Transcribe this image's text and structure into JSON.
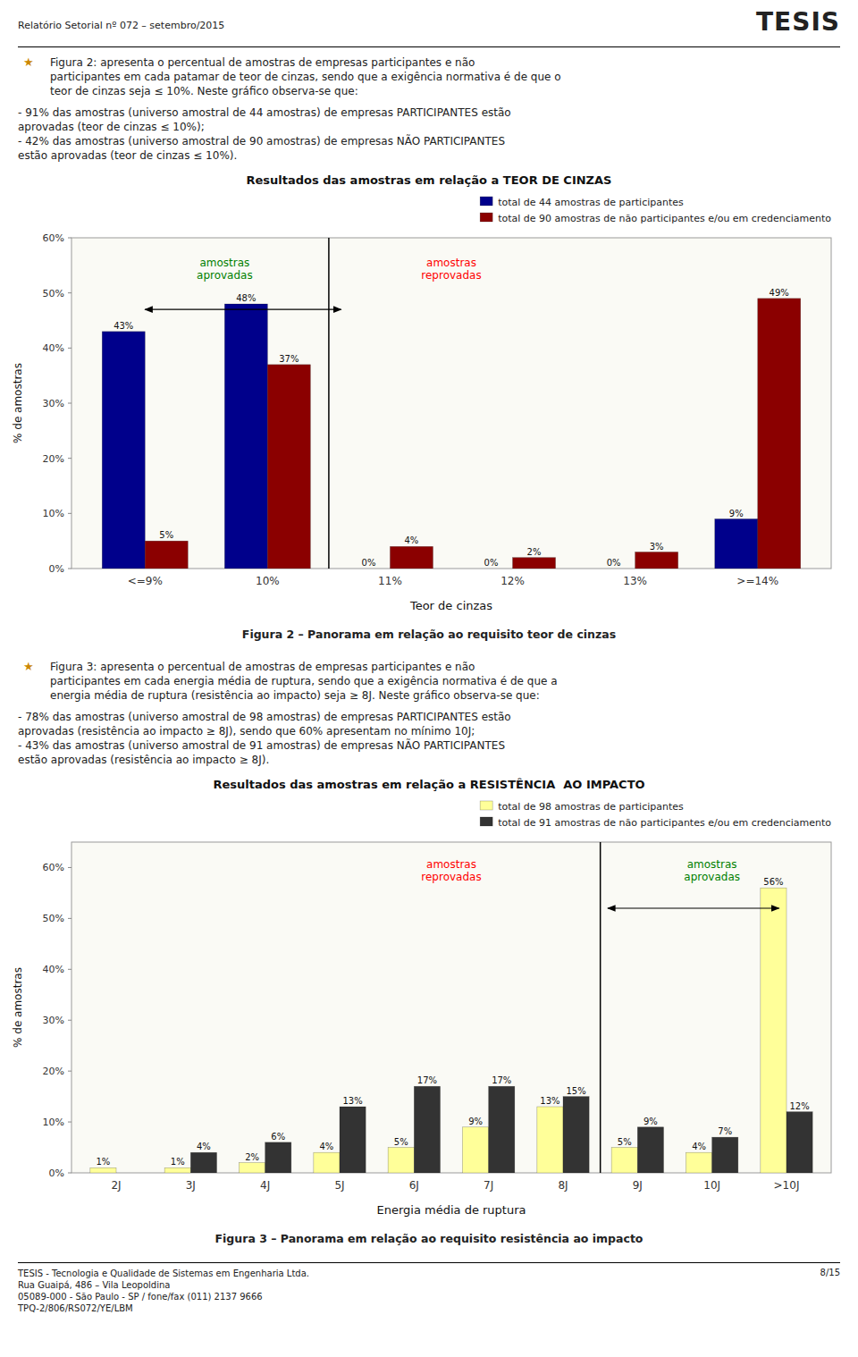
{
  "page_texts": {
    "header": "Relatório Setorial nº 072 – setembro/2015",
    "logo": "TESIS",
    "icon": "★",
    "icon_color": "#CC8800",
    "sections": [
      {
        "intro": "Figura 2: apresenta o percentual de amostras de empresas participantes e não\nparticipantes em cada patamar de teor de cinzas, sendo que a exigência normativa é de que o\nteor de cinzas seja ≤ 10%. Neste gráfico observa-se que:",
        "bullets": [
          "- 91% das amostras (universo amostral de 44 amostras) de empresas PARTICIPANTES estão\naprovadas (teor de cinzas ≤ 10%);",
          "- 42% das amostras (universo amostral de 90 amostras) de empresas NÃO PARTICIPANTES\nestão aprovadas (teor de cinzas ≤ 10%)."
        ],
        "caption": "Figura 2 – Panorama em relação ao requisito teor de cinzas"
      },
      {
        "intro": "Figura 3: apresenta o percentual de amostras de empresas participantes e não\nparticipantes em cada energia média de ruptura, sendo que a exigência normativa é de que a\nenergia média de ruptura (resistência ao impacto) seja ≥ 8J. Neste gráfico observa-se que:",
        "bullets": [
          "- 78% das amostras (universo amostral de 98 amostras) de empresas PARTICIPANTES estão\naprovadas (resistência ao impacto ≥ 8J), sendo que 60% apresentam no mínimo 10J;",
          "- 43% das amostras (universo amostral de 91 amostras) de empresas NÃO PARTICIPANTES\nestão aprovadas (resistência ao impacto ≥ 8J)."
        ],
        "caption": "Figura 3 – Panorama em relação ao requisito resistência ao impacto"
      }
    ],
    "footer_left": "TESIS - Tecnologia e Qualidade de Sistemas em Engenharia Ltda.\nRua Guaipá, 486 – Vila Leopoldina\n05089-000 - São Paulo - SP / fone/fax (011) 2137 9666\nTPQ-2/806/RS072/YE/LBM",
    "footer_right": "8/15"
  },
  "chart_data": [
    {
      "type": "bar",
      "title": "Resultados das amostras em relação a TEOR DE CINZAS",
      "xlabel": "Teor de cinzas",
      "ylabel": "% de amostras",
      "categories": [
        "<=9%",
        "10%",
        "11%",
        "12%",
        "13%",
        ">=14%"
      ],
      "series": [
        {
          "name": "total de 44 amostras de participantes",
          "color": "#00008B",
          "values": [
            43,
            48,
            0,
            0,
            0,
            9
          ],
          "value_labels": [
            "43%",
            "48%",
            "0%",
            "0%",
            "0%",
            "9%"
          ]
        },
        {
          "name": "total de 90 amostras de não participantes e/ou em credenciamento",
          "color": "#8B0000",
          "values": [
            5,
            37,
            4,
            2,
            3,
            49
          ],
          "value_labels": [
            "5%",
            "37%",
            "4%",
            "2%",
            "3%",
            "49%"
          ]
        }
      ],
      "ylim": [
        0,
        60
      ],
      "yticks": [
        {
          "value": 0,
          "label": "0%"
        },
        {
          "value": 10,
          "label": "10%"
        },
        {
          "value": 20,
          "label": "20%"
        },
        {
          "value": 30,
          "label": "30%"
        },
        {
          "value": 40,
          "label": "40%"
        },
        {
          "value": 50,
          "label": "50%"
        },
        {
          "value": 60,
          "label": "60%"
        }
      ],
      "grid": false,
      "legend": "upper right",
      "data_labels": true,
      "annotations": [
        {
          "text": "amostras\naprovadas",
          "color": "green",
          "x": 0.65,
          "y": 52
        },
        {
          "text": "amostras\nreprovadas",
          "color": "red",
          "x": 2.5,
          "y": 52
        }
      ],
      "arrows": [
        {
          "x": [
            0.0,
            1.6
          ],
          "y": 47
        }
      ],
      "dividers": [
        1.5
      ]
    },
    {
      "type": "bar",
      "title": "Resultados das amostras em relação a RESISTÊNCIA  AO IMPACTO",
      "xlabel": "Energia média de ruptura",
      "ylabel": "% de amostras",
      "categories": [
        "2J",
        "3J",
        "4J",
        "5J",
        "6J",
        "7J",
        "8J",
        "9J",
        "10J",
        ">10J"
      ],
      "series": [
        {
          "name": "total de 98 amostras de participantes",
          "color": "#FFFF99",
          "values": [
            1,
            1,
            2,
            4,
            5,
            9,
            13,
            5,
            4,
            56
          ],
          "value_labels": [
            "1%",
            "1%",
            "2%",
            "4%",
            "5%",
            "9%",
            "13%",
            "5%",
            "4%",
            "56%"
          ]
        },
        {
          "name": "total de 91 amostras de não participantes e/ou em credenciamento",
          "color": "#333333",
          "values": [
            0,
            4,
            6,
            13,
            17,
            17,
            15,
            9,
            7,
            12
          ],
          "value_labels": [
            null,
            "4%",
            "6%",
            "13%",
            "17%",
            "17%",
            "15%",
            "9%",
            "7%",
            "12%"
          ]
        }
      ],
      "ylim": [
        0,
        65
      ],
      "yticks": [
        {
          "value": 0,
          "label": "0%"
        },
        {
          "value": 10,
          "label": "10%"
        },
        {
          "value": 20,
          "label": "20%"
        },
        {
          "value": 30,
          "label": "30%"
        },
        {
          "value": 40,
          "label": "40%"
        },
        {
          "value": 50,
          "label": "50%"
        },
        {
          "value": 60,
          "label": "60%"
        }
      ],
      "grid": false,
      "legend": "upper right",
      "data_labels": true,
      "annotations": [
        {
          "text": "amostras\nreprovadas",
          "color": "red",
          "x": 4.5,
          "y": 57
        },
        {
          "text": "amostras\naprovadas",
          "color": "green",
          "x": 8.0,
          "y": 57
        }
      ],
      "arrows": [
        {
          "x": [
            6.6,
            8.9
          ],
          "y": 52
        }
      ],
      "dividers": [
        6.5
      ]
    }
  ]
}
